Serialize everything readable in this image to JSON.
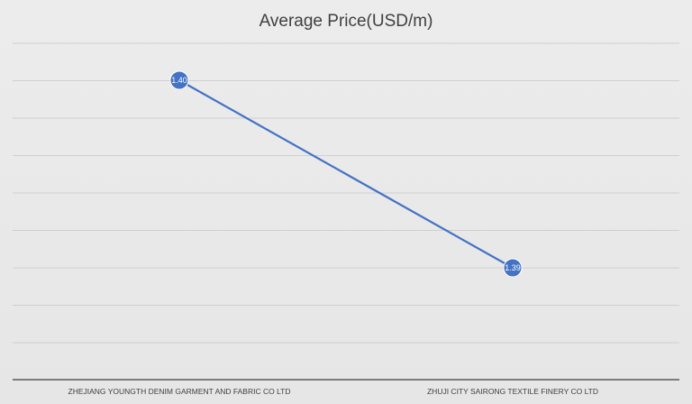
{
  "chart_data": {
    "type": "line",
    "title": "Average Price(USD/m)",
    "xlabel": "",
    "ylabel": "",
    "categories": [
      "ZHEJIANG YOUNGTH DENIM GARMENT AND FABRIC CO LTD",
      "ZHUJI CITY SAIRONG TEXTILE FINERY CO LTD"
    ],
    "series": [
      {
        "values": [
          1.4,
          1.39
        ],
        "data_labels": [
          "1.40",
          "1.39"
        ],
        "color": "#4472c4"
      }
    ],
    "grid": true,
    "legend": "none",
    "y_axis_labels_visible": false
  }
}
